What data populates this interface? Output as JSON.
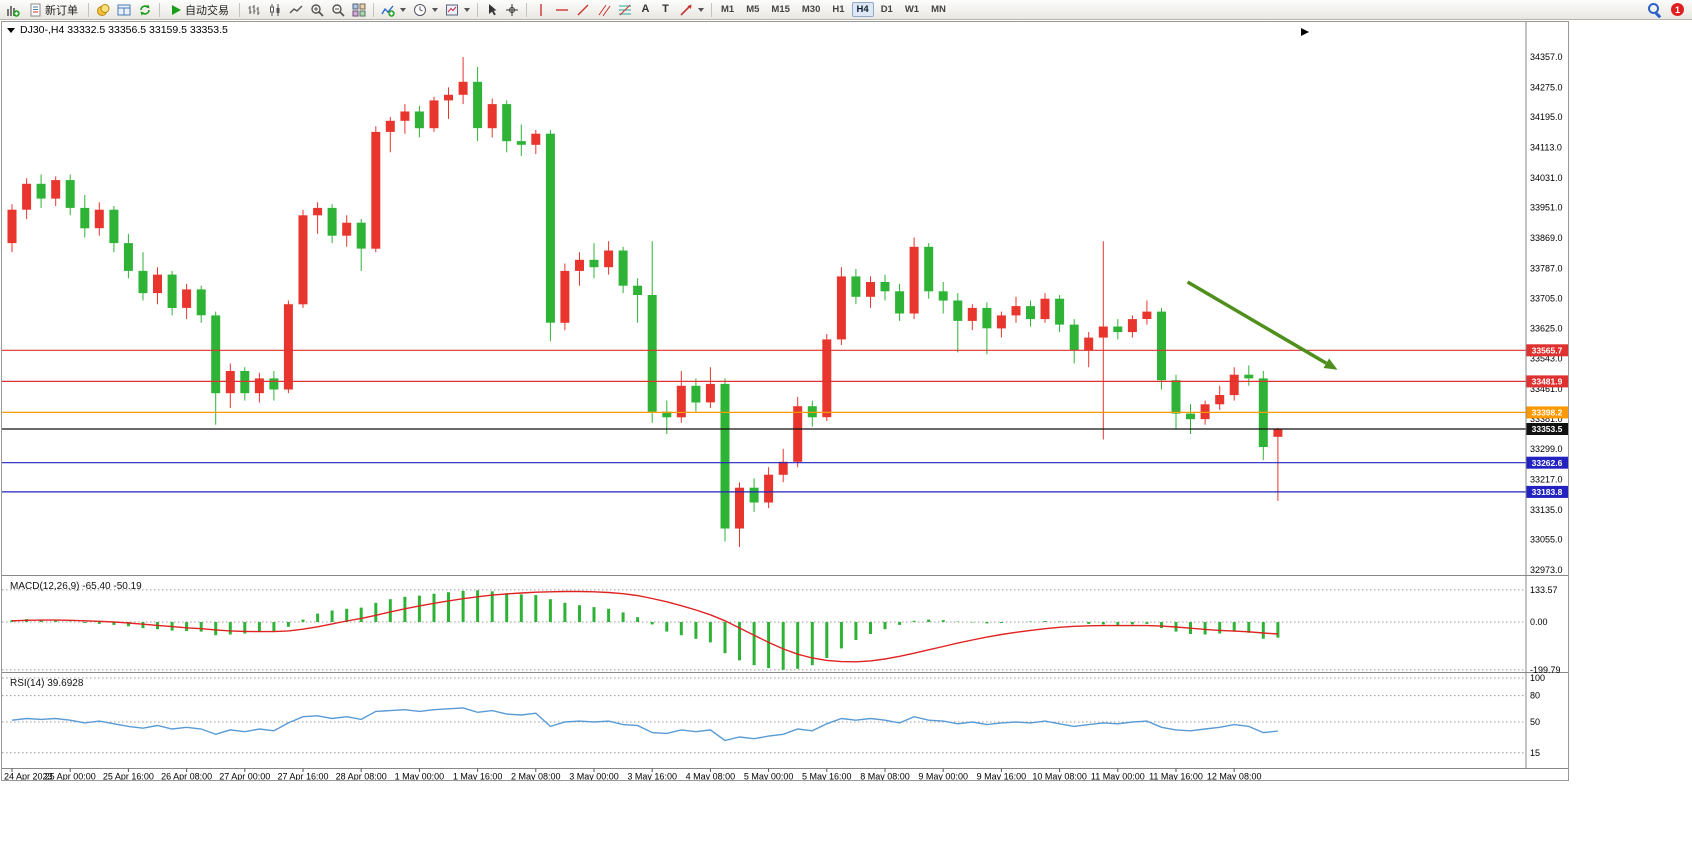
{
  "toolbar": {
    "new_order_label": "新订单",
    "auto_trading_label": "自动交易",
    "text_tool_glyph": "A",
    "label_tool_glyph": "T",
    "timeframes": [
      "M1",
      "M5",
      "M15",
      "M30",
      "H1",
      "H4",
      "D1",
      "W1",
      "MN"
    ],
    "active_timeframe": "H4",
    "notification_count": "1"
  },
  "chart": {
    "symbol_title": "DJ30-,H4 33332.5 33356.5 33159.5 33353.5"
  },
  "chart_data": {
    "type": "candlestick",
    "symbol": "DJ30-",
    "timeframe": "H4",
    "ohlc": {
      "open": 33332.5,
      "high": 33356.5,
      "low": 33159.5,
      "close": 33353.5
    },
    "ylim": [
      32973.0,
      34357.0
    ],
    "y_ticks": [
      "34357.0",
      "34275.0",
      "34195.0",
      "34113.0",
      "34031.0",
      "33951.0",
      "33869.0",
      "33787.0",
      "33705.0",
      "33625.0",
      "33543.0",
      "33461.0",
      "33381.0",
      "33299.0",
      "33217.0",
      "33135.0",
      "33055.0",
      "32973.0"
    ],
    "candles": [
      [
        33855,
        33960,
        33830,
        33945
      ],
      [
        33945,
        34030,
        33920,
        34015
      ],
      [
        34015,
        34040,
        33950,
        33975
      ],
      [
        33975,
        34035,
        33955,
        34025
      ],
      [
        34025,
        34040,
        33930,
        33950
      ],
      [
        33950,
        33985,
        33870,
        33895
      ],
      [
        33895,
        33965,
        33875,
        33945
      ],
      [
        33945,
        33955,
        33830,
        33855
      ],
      [
        33855,
        33880,
        33760,
        33780
      ],
      [
        33780,
        33830,
        33700,
        33720
      ],
      [
        33720,
        33790,
        33690,
        33770
      ],
      [
        33770,
        33780,
        33660,
        33680
      ],
      [
        33680,
        33745,
        33650,
        33730
      ],
      [
        33730,
        33740,
        33640,
        33660
      ],
      [
        33660,
        33670,
        33365,
        33450
      ],
      [
        33450,
        33530,
        33410,
        33510
      ],
      [
        33510,
        33520,
        33430,
        33450
      ],
      [
        33450,
        33505,
        33425,
        33490
      ],
      [
        33490,
        33510,
        33430,
        33460
      ],
      [
        33460,
        33700,
        33450,
        33690
      ],
      [
        33690,
        33945,
        33680,
        33930
      ],
      [
        33930,
        33965,
        33880,
        33950
      ],
      [
        33950,
        33960,
        33855,
        33875
      ],
      [
        33875,
        33930,
        33845,
        33910
      ],
      [
        33910,
        33920,
        33780,
        33840
      ],
      [
        33840,
        34170,
        33830,
        34155
      ],
      [
        34155,
        34195,
        34100,
        34185
      ],
      [
        34185,
        34230,
        34150,
        34210
      ],
      [
        34210,
        34225,
        34140,
        34165
      ],
      [
        34165,
        34250,
        34155,
        34240
      ],
      [
        34240,
        34275,
        34190,
        34255
      ],
      [
        34255,
        34357,
        34230,
        34290
      ],
      [
        34290,
        34330,
        34130,
        34165
      ],
      [
        34165,
        34245,
        34140,
        34230
      ],
      [
        34230,
        34240,
        34100,
        34130
      ],
      [
        34130,
        34175,
        34090,
        34120
      ],
      [
        34120,
        34160,
        34095,
        34150
      ],
      [
        34150,
        34160,
        33590,
        33640
      ],
      [
        33640,
        33800,
        33620,
        33780
      ],
      [
        33780,
        33830,
        33740,
        33810
      ],
      [
        33810,
        33855,
        33760,
        33790
      ],
      [
        33790,
        33860,
        33770,
        33835
      ],
      [
        33835,
        33845,
        33720,
        33740
      ],
      [
        33740,
        33760,
        33640,
        33715
      ],
      [
        33715,
        33860,
        33370,
        33400
      ],
      [
        33400,
        33430,
        33340,
        33385
      ],
      [
        33385,
        33510,
        33370,
        33470
      ],
      [
        33470,
        33490,
        33400,
        33425
      ],
      [
        33425,
        33520,
        33410,
        33475
      ],
      [
        33475,
        33490,
        33050,
        33085
      ],
      [
        33085,
        33210,
        33035,
        33195
      ],
      [
        33195,
        33220,
        33130,
        33155
      ],
      [
        33155,
        33250,
        33140,
        33230
      ],
      [
        33230,
        33300,
        33210,
        33265
      ],
      [
        33265,
        33440,
        33250,
        33415
      ],
      [
        33415,
        33430,
        33360,
        33385
      ],
      [
        33385,
        33610,
        33375,
        33595
      ],
      [
        33595,
        33790,
        33580,
        33765
      ],
      [
        33765,
        33785,
        33690,
        33710
      ],
      [
        33710,
        33765,
        33680,
        33750
      ],
      [
        33750,
        33770,
        33700,
        33725
      ],
      [
        33725,
        33745,
        33645,
        33665
      ],
      [
        33665,
        33870,
        33650,
        33845
      ],
      [
        33845,
        33855,
        33705,
        33725
      ],
      [
        33725,
        33750,
        33665,
        33700
      ],
      [
        33700,
        33720,
        33560,
        33645
      ],
      [
        33645,
        33690,
        33620,
        33680
      ],
      [
        33680,
        33695,
        33555,
        33625
      ],
      [
        33625,
        33670,
        33600,
        33660
      ],
      [
        33660,
        33710,
        33640,
        33685
      ],
      [
        33685,
        33700,
        33630,
        33650
      ],
      [
        33650,
        33720,
        33640,
        33705
      ],
      [
        33705,
        33715,
        33615,
        33635
      ],
      [
        33635,
        33650,
        33530,
        33565
      ],
      [
        33565,
        33615,
        33520,
        33600
      ],
      [
        33600,
        33860,
        33325,
        33630
      ],
      [
        33630,
        33650,
        33595,
        33615
      ],
      [
        33615,
        33660,
        33600,
        33650
      ],
      [
        33650,
        33700,
        33635,
        33670
      ],
      [
        33670,
        33680,
        33460,
        33485
      ],
      [
        33485,
        33500,
        33355,
        33395
      ],
      [
        33395,
        33420,
        33340,
        33380
      ],
      [
        33380,
        33430,
        33365,
        33420
      ],
      [
        33420,
        33470,
        33405,
        33445
      ],
      [
        33445,
        33520,
        33430,
        33500
      ],
      [
        33500,
        33525,
        33470,
        33490
      ],
      [
        33490,
        33510,
        33270,
        33305
      ],
      [
        33332.5,
        33356.5,
        33159.5,
        33353.5
      ]
    ],
    "x_labels": [
      {
        "i": 0,
        "t": "24 Apr 2023"
      },
      {
        "i": 4,
        "t": "25 Apr 00:00"
      },
      {
        "i": 8,
        "t": "25 Apr 16:00"
      },
      {
        "i": 12,
        "t": "26 Apr 08:00"
      },
      {
        "i": 16,
        "t": "27 Apr 00:00"
      },
      {
        "i": 20,
        "t": "27 Apr 16:00"
      },
      {
        "i": 24,
        "t": "28 Apr 08:00"
      },
      {
        "i": 28,
        "t": "1 May 00:00"
      },
      {
        "i": 32,
        "t": "1 May 16:00"
      },
      {
        "i": 36,
        "t": "2 May 08:00"
      },
      {
        "i": 40,
        "t": "3 May 00:00"
      },
      {
        "i": 44,
        "t": "3 May 16:00"
      },
      {
        "i": 48,
        "t": "4 May 08:00"
      },
      {
        "i": 52,
        "t": "5 May 00:00"
      },
      {
        "i": 56,
        "t": "5 May 16:00"
      },
      {
        "i": 60,
        "t": "8 May 08:00"
      },
      {
        "i": 64,
        "t": "9 May 00:00"
      },
      {
        "i": 68,
        "t": "9 May 16:00"
      },
      {
        "i": 72,
        "t": "10 May 08:00"
      },
      {
        "i": 76,
        "t": "11 May 00:00"
      },
      {
        "i": 80,
        "t": "11 May 16:00"
      },
      {
        "i": 84,
        "t": "12 May 08:00"
      }
    ],
    "h_lines": [
      {
        "name": "resistance-1",
        "price": 33565.7,
        "label": "33565.7",
        "color": "#e03131"
      },
      {
        "name": "resistance-2",
        "price": 33481.9,
        "label": "33481.9",
        "color": "#e03131"
      },
      {
        "name": "pivot",
        "price": 33398.2,
        "label": "33398.2",
        "color": "#ff9900"
      },
      {
        "name": "current-price",
        "price": 33353.5,
        "label": "33353.5",
        "color": "#111111"
      },
      {
        "name": "support-1",
        "price": 33262.6,
        "label": "33262.6",
        "color": "#2222c0"
      },
      {
        "name": "support-2",
        "price": 33183.8,
        "label": "33183.8",
        "color": "#2222c0"
      }
    ],
    "arrow": {
      "from": {
        "index": 80.8,
        "price": 33750
      },
      "to": {
        "index": 91.1,
        "price": 33513
      },
      "color": "#4f8f1d"
    },
    "macd": {
      "display": "MACD(12,26,9) -65.40 -50.19",
      "levels": [
        133.57,
        0,
        -199.79
      ],
      "y_ticks": [
        "133.57",
        "0.00",
        "-199.79"
      ],
      "histogram": [
        8,
        12,
        10,
        6,
        2,
        -4,
        -8,
        -12,
        -18,
        -26,
        -30,
        -36,
        -38,
        -40,
        -55,
        -52,
        -48,
        -42,
        -38,
        -20,
        10,
        35,
        48,
        55,
        60,
        80,
        95,
        105,
        110,
        118,
        124,
        130,
        132,
        128,
        120,
        115,
        112,
        95,
        80,
        70,
        62,
        55,
        40,
        20,
        -10,
        -40,
        -55,
        -70,
        -85,
        -130,
        -160,
        -180,
        -192,
        -199,
        -195,
        -180,
        -150,
        -110,
        -75,
        -50,
        -30,
        -12,
        5,
        10,
        8,
        2,
        -2,
        -6,
        -4,
        0,
        2,
        4,
        2,
        -2,
        -8,
        -10,
        -12,
        -10,
        -8,
        -25,
        -40,
        -50,
        -52,
        -48,
        -40,
        -45,
        -70,
        -65.4
      ],
      "signal": [
        5,
        7,
        8,
        8,
        7,
        5,
        3,
        0,
        -4,
        -9,
        -14,
        -19,
        -24,
        -28,
        -33,
        -37,
        -39,
        -40,
        -40,
        -37,
        -30,
        -20,
        -8,
        4,
        15,
        28,
        42,
        55,
        67,
        78,
        88,
        97,
        105,
        112,
        117,
        121,
        124,
        126,
        127,
        127,
        126,
        123,
        118,
        110,
        98,
        84,
        68,
        50,
        30,
        5,
        -25,
        -55,
        -85,
        -112,
        -134,
        -150,
        -160,
        -165,
        -166,
        -162,
        -154,
        -143,
        -130,
        -116,
        -102,
        -88,
        -75,
        -63,
        -52,
        -43,
        -35,
        -28,
        -22,
        -18,
        -16,
        -15,
        -15,
        -15,
        -15,
        -17,
        -21,
        -26,
        -31,
        -35,
        -38,
        -41,
        -46,
        -50.2
      ]
    },
    "rsi": {
      "display": "RSI(14) 39.6928",
      "levels": [
        100,
        80,
        50,
        15
      ],
      "y_ticks": [
        "100",
        "80",
        "50",
        "15"
      ],
      "values": [
        52,
        54,
        53,
        54,
        52,
        49,
        51,
        48,
        45,
        43,
        46,
        42,
        44,
        42,
        36,
        41,
        39,
        42,
        40,
        49,
        56,
        57,
        54,
        56,
        53,
        62,
        63,
        64,
        62,
        64,
        65,
        66,
        61,
        63,
        59,
        58,
        60,
        45,
        50,
        51,
        50,
        51,
        47,
        46,
        38,
        37,
        41,
        39,
        41,
        29,
        33,
        31,
        34,
        36,
        42,
        40,
        48,
        54,
        52,
        54,
        52,
        49,
        56,
        52,
        51,
        48,
        50,
        47,
        49,
        50,
        49,
        51,
        48,
        45,
        47,
        49,
        48,
        50,
        51,
        44,
        41,
        40,
        42,
        44,
        47,
        45,
        38,
        39.7
      ]
    },
    "colors": {
      "bull": "#e8352e",
      "bear": "#2eb336",
      "macd_histogram": "#2eb336",
      "macd_signal": "#e02222",
      "rsi": "#5a9bd5",
      "arrow": "#4f8f1d",
      "grid": "#999999"
    }
  }
}
